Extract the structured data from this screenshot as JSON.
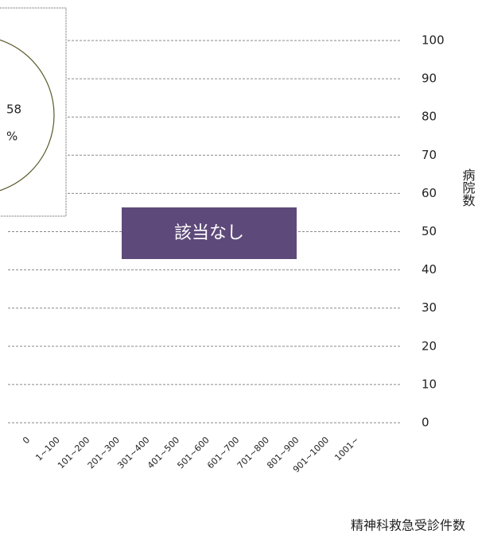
{
  "chart_data": {
    "type": "bar",
    "categories": [
      "0",
      "1~100",
      "101~200",
      "201~300",
      "301~400",
      "401~500",
      "501~600",
      "601~700",
      "701~800",
      "801~900",
      "901~1000",
      "1001~"
    ],
    "ylim": [
      0,
      100
    ],
    "yticks": [
      0,
      10,
      20,
      30,
      40,
      50,
      60,
      70,
      80,
      90,
      100
    ],
    "grid": true,
    "y_axis_label": "病院数",
    "x_axis_label": "精神科救急受診件数",
    "annotation": "該当なし",
    "annotation_color": "#5e4a7a",
    "inset_value": "58",
    "inset_unit": "%"
  }
}
